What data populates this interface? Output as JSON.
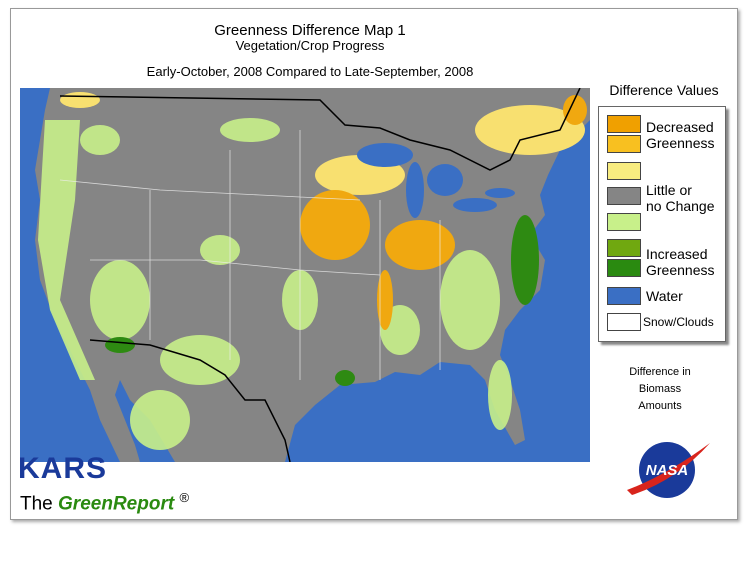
{
  "header": {
    "title": "Greenness Difference Map 1",
    "subtitle": "Vegetation/Crop Progress",
    "date_range": "Early-October, 2008 Compared to Late-September, 2008"
  },
  "legend": {
    "title": "Difference Values",
    "items": [
      [
        "Decreased",
        "Greenness"
      ],
      [
        "Little or",
        "no Change"
      ],
      [
        "Increased",
        "Greenness"
      ],
      [
        "Water"
      ],
      [
        "Snow/Clouds"
      ]
    ]
  },
  "note": [
    "Difference in",
    "Biomass",
    "Amounts"
  ],
  "branding": {
    "logo": "KARS",
    "prefix": "The",
    "name": "GreenReport",
    "mark": "®",
    "agency": "NASA"
  }
}
